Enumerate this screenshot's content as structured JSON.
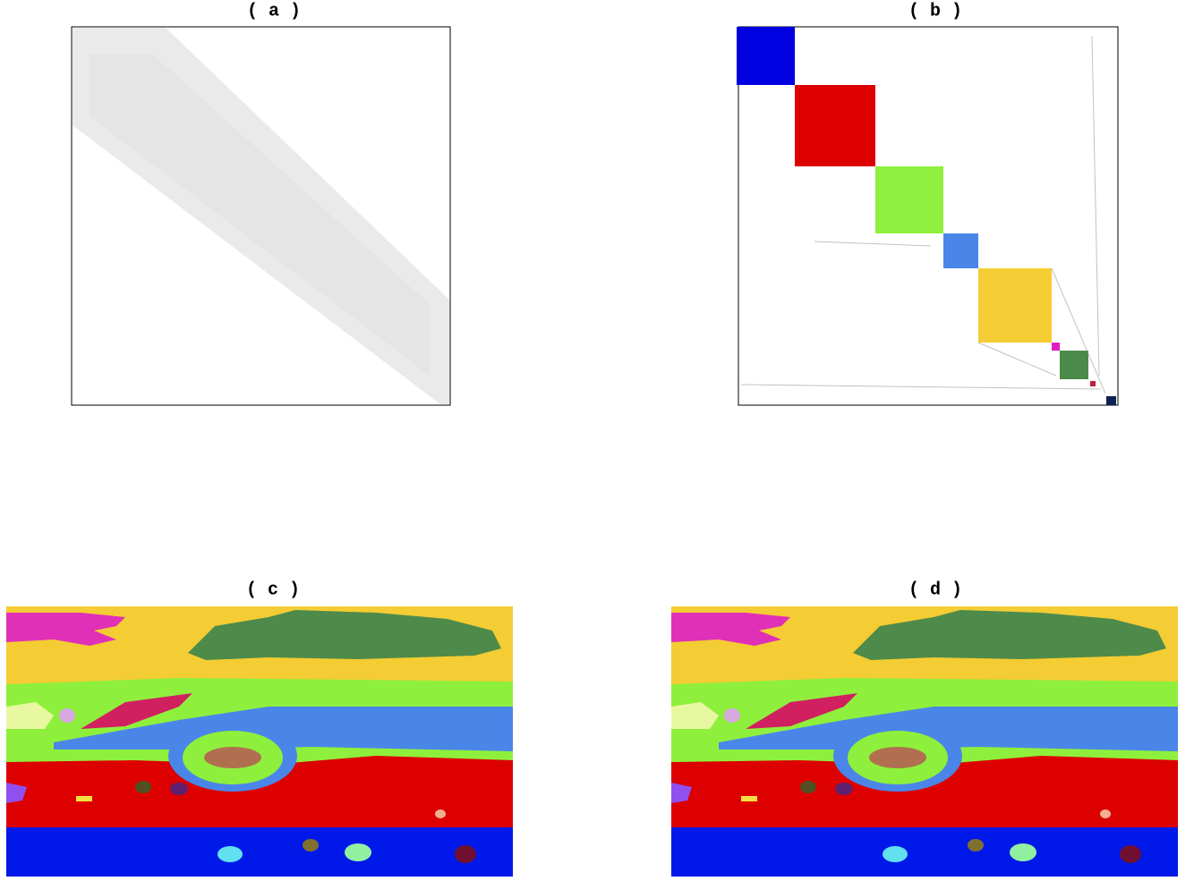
{
  "panels": [
    {
      "label": "( a )"
    },
    {
      "label": "( b )"
    },
    {
      "label": "( c )"
    },
    {
      "label": "( d )"
    }
  ]
}
